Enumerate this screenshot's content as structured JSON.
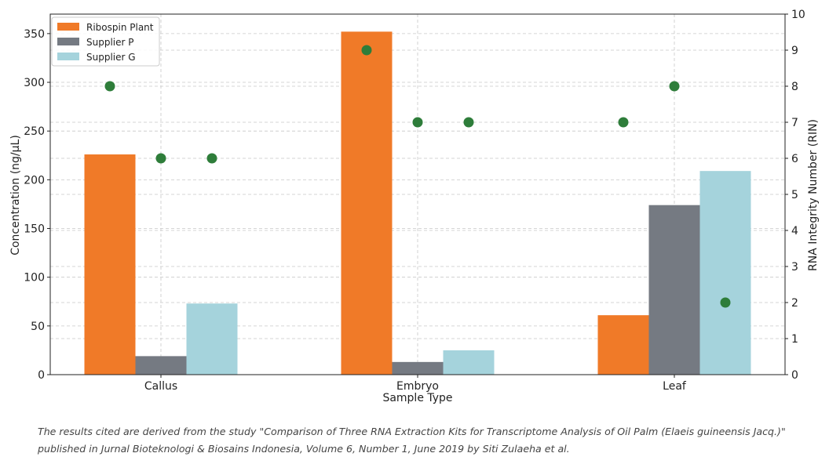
{
  "chart_data": {
    "type": "bar",
    "categories": [
      "Callus",
      "Embryo",
      "Leaf"
    ],
    "series": [
      {
        "name": "Ribospin Plant",
        "color": "#f07a28",
        "values": [
          226,
          352,
          61
        ]
      },
      {
        "name": "Supplier P",
        "color": "#757a82",
        "values": [
          19,
          13,
          174
        ]
      },
      {
        "name": "Supplier G",
        "color": "#a5d3dc",
        "values": [
          73,
          25,
          209
        ]
      }
    ],
    "rin_series": {
      "color": "#2e7d3a",
      "values": [
        [
          8,
          6,
          6
        ],
        [
          9,
          7,
          7
        ],
        [
          7,
          8,
          2
        ]
      ]
    },
    "xlabel": "Sample Type",
    "ylabel": "Concentration (ng/µL)",
    "y2label": "RNA Integrity Number (RIN)",
    "ylim": [
      0,
      370
    ],
    "y2lim": [
      0,
      10
    ],
    "yticks": [
      0,
      50,
      100,
      150,
      200,
      250,
      300,
      350
    ],
    "y2ticks": [
      0,
      1,
      2,
      3,
      4,
      5,
      6,
      7,
      8,
      9,
      10
    ],
    "grid": true,
    "legend_position": "top-left"
  },
  "caption": "The results cited are derived from the study \"Comparison of Three RNA Extraction Kits for Transcriptome Analysis of Oil Palm (Elaeis guineensis Jacq.)\" published in Jurnal Bioteknologi & Biosains Indonesia, Volume 6, Number 1, June 2019 by Siti Zulaeha et al."
}
